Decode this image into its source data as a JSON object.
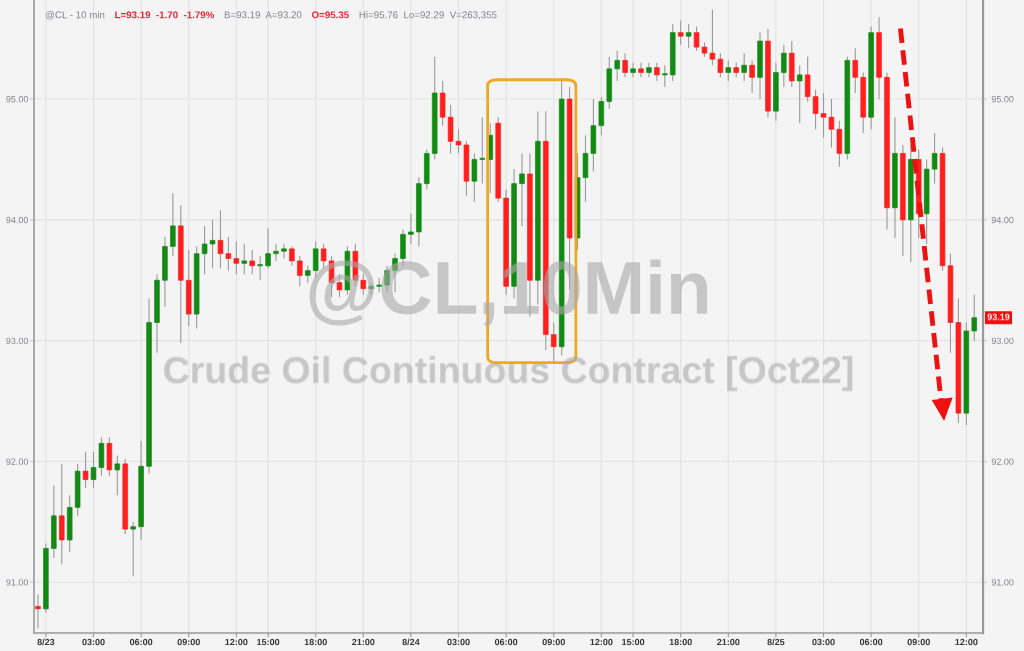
{
  "chart_data": {
    "type": "candlestick",
    "categories": [
      null,
      "8/23",
      null,
      null,
      null,
      null,
      null,
      "03:00",
      null,
      null,
      null,
      null,
      null,
      "06:00",
      null,
      null,
      null,
      null,
      null,
      "09:00",
      null,
      null,
      null,
      null,
      null,
      "12:00",
      null,
      null,
      null,
      "15:00",
      null,
      null,
      null,
      null,
      null,
      "18:00",
      null,
      null,
      null,
      null,
      null,
      "21:00",
      null,
      null,
      null,
      null,
      null,
      "8/24",
      null,
      null,
      null,
      null,
      null,
      "03:00",
      null,
      null,
      null,
      null,
      null,
      "06:00",
      null,
      null,
      null,
      null,
      null,
      "09:00",
      null,
      null,
      null,
      null,
      null,
      "12:00",
      null,
      null,
      null,
      "15:00",
      null,
      null,
      null,
      null,
      null,
      "18:00",
      null,
      null,
      null,
      null,
      null,
      "21:00",
      null,
      null,
      null,
      null,
      null,
      "8/25",
      null,
      null,
      null,
      null,
      null,
      "03:00",
      null,
      null,
      null,
      null,
      null,
      "06:00",
      null,
      null,
      null,
      null,
      null,
      "09:00",
      null,
      null,
      null,
      null,
      null,
      "12:00",
      null
    ],
    "ohlc": [
      [
        90.8,
        90.9,
        90.62,
        90.78
      ],
      [
        90.78,
        91.32,
        90.75,
        91.28
      ],
      [
        91.28,
        91.8,
        91.2,
        91.55
      ],
      [
        91.55,
        91.98,
        91.15,
        91.35
      ],
      [
        91.35,
        91.72,
        91.25,
        91.62
      ],
      [
        91.62,
        91.98,
        91.55,
        91.92
      ],
      [
        91.92,
        92.08,
        91.78,
        91.85
      ],
      [
        91.85,
        92.08,
        91.78,
        91.95
      ],
      [
        91.95,
        92.2,
        91.88,
        92.15
      ],
      [
        92.15,
        92.2,
        91.88,
        91.93
      ],
      [
        91.93,
        92.05,
        91.72,
        91.98
      ],
      [
        91.98,
        92.02,
        91.4,
        91.44
      ],
      [
        91.44,
        91.5,
        91.05,
        91.46
      ],
      [
        91.46,
        92.17,
        91.35,
        91.96
      ],
      [
        91.96,
        93.35,
        91.9,
        93.15
      ],
      [
        93.15,
        93.55,
        92.9,
        93.5
      ],
      [
        93.5,
        93.86,
        93.28,
        93.78
      ],
      [
        93.78,
        94.22,
        93.7,
        93.95
      ],
      [
        93.95,
        94.12,
        92.98,
        93.5
      ],
      [
        93.5,
        93.75,
        93.12,
        93.22
      ],
      [
        93.22,
        93.78,
        93.1,
        93.72
      ],
      [
        93.72,
        93.95,
        93.55,
        93.8
      ],
      [
        93.8,
        94.0,
        93.6,
        93.83
      ],
      [
        93.83,
        94.08,
        93.6,
        93.72
      ],
      [
        93.72,
        93.86,
        93.58,
        93.68
      ],
      [
        93.68,
        93.82,
        93.55,
        93.64
      ],
      [
        93.64,
        93.8,
        93.55,
        93.66
      ],
      [
        93.66,
        93.75,
        93.55,
        93.62
      ],
      [
        93.62,
        93.7,
        93.5,
        93.62
      ],
      [
        93.62,
        93.93,
        93.6,
        93.72
      ],
      [
        93.72,
        93.8,
        93.66,
        93.74
      ],
      [
        93.74,
        93.8,
        93.68,
        93.76
      ],
      [
        93.76,
        93.78,
        93.62,
        93.66
      ],
      [
        93.66,
        93.7,
        93.45,
        93.54
      ],
      [
        93.54,
        93.62,
        93.48,
        93.58
      ],
      [
        93.58,
        93.82,
        93.52,
        93.76
      ],
      [
        93.76,
        93.8,
        93.6,
        93.66
      ],
      [
        93.66,
        93.7,
        93.36,
        93.48
      ],
      [
        93.48,
        93.55,
        93.36,
        93.42
      ],
      [
        93.42,
        93.78,
        93.38,
        93.74
      ],
      [
        93.74,
        93.8,
        93.45,
        93.5
      ],
      [
        93.5,
        93.55,
        93.38,
        93.43
      ],
      [
        93.43,
        93.48,
        93.38,
        93.45
      ],
      [
        93.45,
        93.52,
        93.4,
        93.46
      ],
      [
        93.46,
        93.62,
        93.4,
        93.58
      ],
      [
        93.58,
        93.72,
        93.4,
        93.68
      ],
      [
        93.68,
        93.92,
        93.62,
        93.88
      ],
      [
        93.88,
        94.05,
        93.8,
        93.9
      ],
      [
        93.9,
        94.35,
        93.78,
        94.3
      ],
      [
        94.3,
        94.58,
        94.25,
        94.55
      ],
      [
        94.55,
        95.35,
        94.5,
        95.05
      ],
      [
        95.05,
        95.15,
        94.78,
        94.85
      ],
      [
        94.85,
        94.95,
        94.55,
        94.65
      ],
      [
        94.65,
        94.75,
        94.55,
        94.62
      ],
      [
        94.62,
        94.65,
        94.2,
        94.32
      ],
      [
        94.32,
        94.55,
        94.15,
        94.5
      ],
      [
        94.5,
        94.85,
        94.3,
        94.5
      ],
      [
        94.5,
        94.8,
        94.22,
        94.7
      ],
      [
        94.8,
        94.85,
        94.15,
        94.18
      ],
      [
        94.18,
        94.25,
        93.38,
        93.45
      ],
      [
        93.45,
        94.42,
        93.35,
        94.3
      ],
      [
        94.3,
        94.55,
        93.95,
        94.38
      ],
      [
        94.38,
        94.55,
        93.2,
        93.5
      ],
      [
        93.5,
        94.9,
        93.3,
        94.65
      ],
      [
        94.65,
        94.9,
        92.92,
        93.05
      ],
      [
        93.05,
        93.15,
        92.82,
        92.95
      ],
      [
        92.95,
        95.16,
        92.88,
        95.0
      ],
      [
        95.0,
        95.1,
        93.42,
        93.85
      ],
      [
        93.85,
        94.55,
        93.75,
        94.35
      ],
      [
        94.35,
        94.7,
        94.15,
        94.55
      ],
      [
        94.55,
        95.0,
        94.4,
        94.78
      ],
      [
        94.78,
        95.02,
        94.7,
        94.98
      ],
      [
        94.98,
        95.35,
        94.92,
        95.25
      ],
      [
        95.25,
        95.4,
        95.15,
        95.32
      ],
      [
        95.32,
        95.38,
        95.18,
        95.22
      ],
      [
        95.22,
        95.3,
        95.18,
        95.25
      ],
      [
        95.25,
        95.3,
        95.18,
        95.22
      ],
      [
        95.22,
        95.3,
        95.18,
        95.26
      ],
      [
        95.26,
        95.3,
        95.15,
        95.2
      ],
      [
        95.2,
        95.28,
        95.1,
        95.2
      ],
      [
        95.2,
        95.62,
        95.15,
        95.55
      ],
      [
        95.55,
        95.65,
        95.45,
        95.52
      ],
      [
        95.52,
        95.62,
        95.42,
        95.55
      ],
      [
        95.55,
        95.6,
        95.4,
        95.43
      ],
      [
        95.43,
        95.47,
        95.35,
        95.38
      ],
      [
        95.38,
        95.74,
        95.28,
        95.33
      ],
      [
        95.33,
        95.38,
        95.18,
        95.22
      ],
      [
        95.22,
        95.32,
        95.15,
        95.26
      ],
      [
        95.26,
        95.3,
        95.18,
        95.22
      ],
      [
        95.22,
        95.38,
        95.15,
        95.28
      ],
      [
        95.28,
        95.32,
        95.05,
        95.18
      ],
      [
        95.18,
        95.55,
        95.0,
        95.48
      ],
      [
        95.48,
        95.58,
        94.85,
        94.9
      ],
      [
        94.9,
        95.3,
        94.82,
        95.22
      ],
      [
        95.22,
        95.45,
        95.1,
        95.38
      ],
      [
        95.38,
        95.48,
        95.1,
        95.15
      ],
      [
        95.15,
        95.28,
        94.8,
        95.2
      ],
      [
        95.2,
        95.35,
        94.98,
        95.02
      ],
      [
        95.02,
        95.08,
        94.75,
        94.88
      ],
      [
        94.88,
        95.05,
        94.68,
        94.85
      ],
      [
        94.85,
        95.0,
        94.6,
        94.75
      ],
      [
        94.75,
        94.82,
        94.44,
        94.55
      ],
      [
        94.55,
        95.35,
        94.5,
        95.32
      ],
      [
        95.32,
        95.42,
        95.05,
        95.18
      ],
      [
        95.18,
        95.22,
        94.72,
        94.85
      ],
      [
        94.85,
        95.6,
        94.75,
        95.55
      ],
      [
        95.55,
        95.68,
        95.0,
        95.18
      ],
      [
        95.18,
        95.22,
        93.92,
        94.1
      ],
      [
        94.1,
        94.85,
        93.85,
        94.55
      ],
      [
        94.55,
        94.62,
        93.7,
        94.0
      ],
      [
        94.0,
        94.62,
        93.65,
        94.5
      ],
      [
        94.5,
        94.58,
        93.85,
        94.05
      ],
      [
        94.05,
        94.5,
        93.8,
        94.42
      ],
      [
        94.42,
        94.72,
        94.3,
        94.55
      ],
      [
        94.55,
        94.6,
        93.58,
        93.62
      ],
      [
        93.62,
        93.72,
        92.9,
        93.15
      ],
      [
        93.15,
        93.35,
        92.32,
        92.4
      ],
      [
        92.4,
        93.15,
        92.3,
        93.08
      ],
      [
        93.08,
        93.38,
        93.0,
        93.19
      ]
    ],
    "ylim": [
      90.58,
      95.82
    ],
    "yticks": [
      {
        "value": 91,
        "label": "91.00"
      },
      {
        "value": 92,
        "label": "92.00"
      },
      {
        "value": 93,
        "label": "93.00"
      },
      {
        "value": 94,
        "label": "94.00"
      },
      {
        "value": 95,
        "label": "95.00"
      }
    ],
    "y2lim": [
      90.58,
      95.82
    ],
    "y2ticks": [
      {
        "value": 91,
        "label": "91.00"
      },
      {
        "value": 92,
        "label": "92.00"
      },
      {
        "value": 93,
        "label": "93.00"
      },
      {
        "value": 94,
        "label": "94.00"
      },
      {
        "value": 95,
        "label": "95.00"
      }
    ],
    "grid": true,
    "annotations": [
      "@CL - 10 min",
      "L=93.19  -1.70  -1.79%",
      "B=93.19  A=93.20",
      "O=95.35",
      "Hi=95.76  Lo=92.29  V=263,355",
      "@CL,10Min",
      "Crude Oil Continuous Contract [Oct22]",
      {
        "text": "93.19",
        "y": 93.19
      }
    ]
  }
}
